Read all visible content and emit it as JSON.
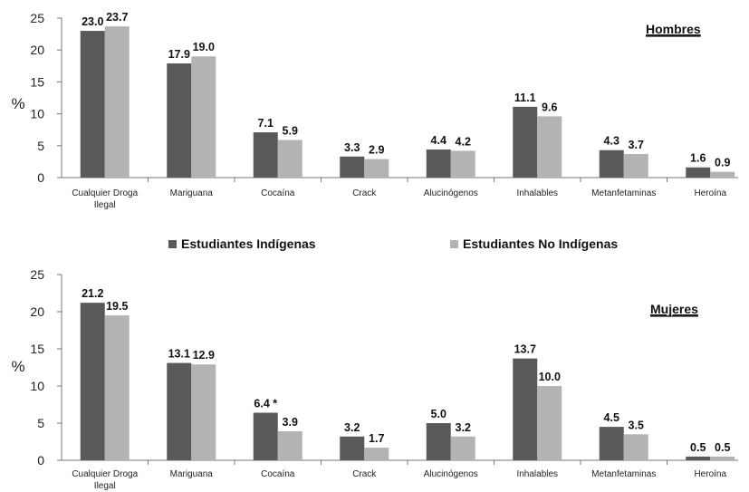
{
  "chart_data": [
    {
      "type": "bar",
      "title": "Hombres",
      "ylabel": "%",
      "ylim": [
        0,
        25
      ],
      "yticks": [
        "0",
        "5",
        "10",
        "15",
        "20",
        "25"
      ],
      "categories": [
        [
          "Cualquier Droga",
          "Ilegal"
        ],
        [
          "Mariguana"
        ],
        [
          "Cocaína"
        ],
        [
          "Crack"
        ],
        [
          "Alucinógenos"
        ],
        [
          "Inhalables"
        ],
        [
          "Metanfetaminas"
        ],
        [
          "Heroína"
        ]
      ],
      "series": [
        {
          "name": "Estudiantes Indígenas",
          "color": "#595959",
          "values": [
            23.0,
            17.9,
            7.1,
            3.3,
            4.4,
            11.1,
            4.3,
            1.6
          ],
          "labels": [
            "23.0",
            "17.9",
            "7.1",
            "3.3",
            "4.4",
            "11.1",
            "4.3",
            "1.6"
          ]
        },
        {
          "name": "Estudiantes No Indígenas",
          "color": "#b3b3b3",
          "values": [
            23.7,
            19.0,
            5.9,
            2.9,
            4.2,
            9.6,
            3.7,
            0.9
          ],
          "labels": [
            "23.7",
            "19.0",
            "5.9",
            "2.9",
            "4.2",
            "9.6",
            "3.7",
            "0.9"
          ]
        }
      ],
      "grid": false
    },
    {
      "type": "bar",
      "title": "Mujeres",
      "ylabel": "%",
      "ylim": [
        0,
        25
      ],
      "yticks": [
        "0",
        "5",
        "10",
        "15",
        "20",
        "25"
      ],
      "categories": [
        [
          "Cualquier Droga",
          "Ilegal"
        ],
        [
          "Mariguana"
        ],
        [
          "Cocaína"
        ],
        [
          "Crack"
        ],
        [
          "Alucinógenos"
        ],
        [
          "Inhalables"
        ],
        [
          "Metanfetaminas"
        ],
        [
          "Heroína"
        ]
      ],
      "series": [
        {
          "name": "Estudiantes Indígenas",
          "color": "#595959",
          "values": [
            21.2,
            13.1,
            6.4,
            3.2,
            5.0,
            13.7,
            4.5,
            0.5
          ],
          "labels": [
            "21.2",
            "13.1",
            "6.4 *",
            "3.2",
            "5.0",
            "13.7",
            "4.5",
            "0.5"
          ]
        },
        {
          "name": "Estudiantes No Indígenas",
          "color": "#b3b3b3",
          "values": [
            19.5,
            12.9,
            3.9,
            1.7,
            3.2,
            10.0,
            3.5,
            0.5
          ],
          "labels": [
            "19.5",
            "12.9",
            "3.9",
            "1.7",
            "3.2",
            "10.0",
            "3.5",
            "0.5"
          ]
        }
      ],
      "grid": false
    }
  ],
  "legend": {
    "placement": "between-panels",
    "items": [
      {
        "label": "Estudiantes Indígenas",
        "color": "#595959"
      },
      {
        "label": "Estudiantes No Indígenas",
        "color": "#b3b3b3"
      }
    ]
  }
}
